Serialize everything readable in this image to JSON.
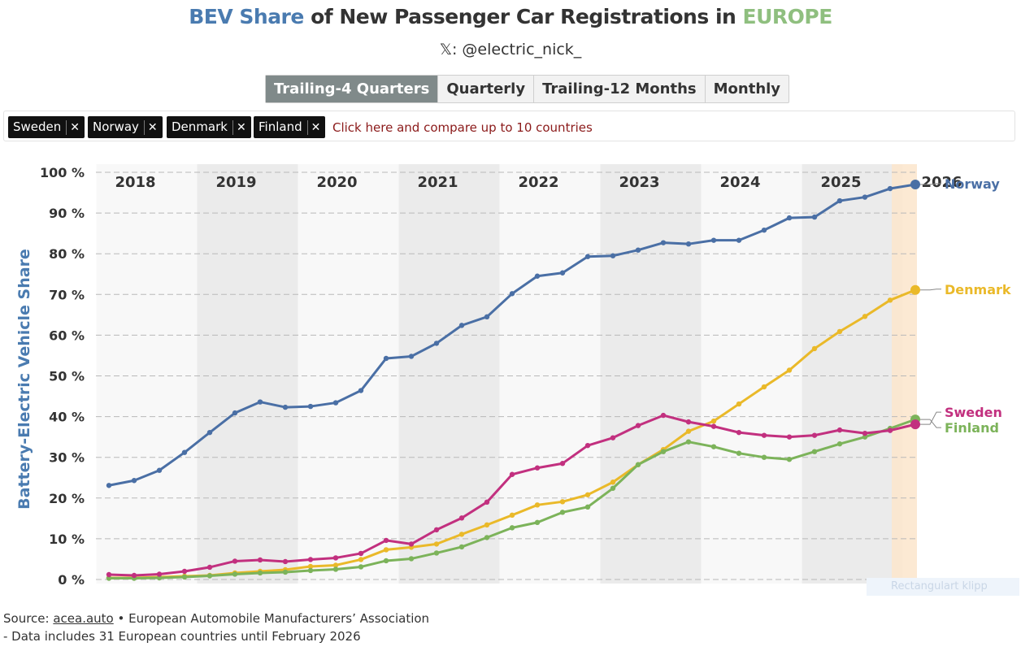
{
  "header": {
    "title_part1": "BEV Share",
    "title_part2": " of New Passenger Car Registrations in ",
    "title_part3": "EUROPE",
    "handle": "𝕏: @electric_nick_"
  },
  "tabs": [
    {
      "label": "Trailing-4 Quarters",
      "active": true
    },
    {
      "label": "Quarterly",
      "active": false
    },
    {
      "label": "Trailing-12 Months",
      "active": false
    },
    {
      "label": "Monthly",
      "active": false
    }
  ],
  "filter": {
    "chips": [
      {
        "label": "Sweden",
        "close": "✕"
      },
      {
        "label": "Norway",
        "close": "✕"
      },
      {
        "label": "Denmark",
        "close": "✕"
      },
      {
        "label": "Finland",
        "close": "✕"
      }
    ],
    "hint": "Click here and compare up to 10 countries"
  },
  "footer": {
    "source_prefix": "Source: ",
    "source_link": "acea.auto",
    "source_suffix": " • European Automobile Manufacturers’ Association",
    "note": "- Data includes 31 European countries until February 2026",
    "ghost_text": "Rectangulart klipp"
  },
  "chart_data": {
    "type": "line",
    "ylabel": "Battery-Electric Vehicle Share",
    "ylim": [
      0,
      100
    ],
    "yticks": [
      0,
      10,
      20,
      30,
      40,
      50,
      60,
      70,
      80,
      90,
      100
    ],
    "ytick_suffix": " %",
    "x_start": 2018.0,
    "x_step": 0.25,
    "years": [
      "2018",
      "2019",
      "2020",
      "2021",
      "2022",
      "2023",
      "2024",
      "2025",
      "2026"
    ],
    "highlight_last_point": true,
    "series": [
      {
        "name": "Norway",
        "color": "#4a6fa5",
        "values": [
          23.1,
          24.3,
          26.8,
          31.2,
          36.1,
          40.9,
          43.6,
          42.3,
          42.5,
          43.4,
          46.4,
          54.3,
          54.8,
          58.0,
          62.4,
          64.5,
          70.2,
          74.5,
          75.3,
          79.3,
          79.5,
          80.9,
          82.7,
          82.4,
          83.3,
          83.3,
          85.8,
          88.8,
          89.0,
          93.0,
          93.9,
          96.0,
          97.0
        ]
      },
      {
        "name": "Denmark",
        "color": "#eab929",
        "values": [
          0.4,
          0.4,
          0.6,
          0.8,
          1.0,
          1.6,
          2.0,
          2.4,
          3.2,
          3.5,
          4.9,
          7.3,
          7.9,
          8.7,
          11.1,
          13.4,
          15.8,
          18.3,
          19.1,
          20.8,
          23.9,
          28.2,
          31.9,
          36.4,
          38.9,
          43.1,
          47.3,
          51.4,
          56.7,
          60.9,
          64.6,
          68.6,
          71.1
        ]
      },
      {
        "name": "Finland",
        "color": "#7cb35a",
        "values": [
          0.3,
          0.3,
          0.4,
          0.6,
          0.9,
          1.3,
          1.6,
          1.8,
          2.2,
          2.5,
          3.1,
          4.6,
          5.1,
          6.5,
          8.0,
          10.3,
          12.7,
          14.0,
          16.5,
          17.8,
          22.4,
          28.2,
          31.4,
          33.8,
          32.6,
          31.0,
          30.0,
          29.5,
          31.4,
          33.3,
          35.0,
          37.1,
          39.3
        ]
      },
      {
        "name": "Sweden",
        "color": "#c2307f",
        "values": [
          1.2,
          1.0,
          1.3,
          2.0,
          3.0,
          4.5,
          4.8,
          4.4,
          4.9,
          5.3,
          6.4,
          9.6,
          8.7,
          12.2,
          15.1,
          19.0,
          25.8,
          27.4,
          28.5,
          32.9,
          34.8,
          37.8,
          40.3,
          38.7,
          37.6,
          36.1,
          35.4,
          35.0,
          35.4,
          36.7,
          35.9,
          36.6,
          38.1
        ]
      }
    ]
  }
}
